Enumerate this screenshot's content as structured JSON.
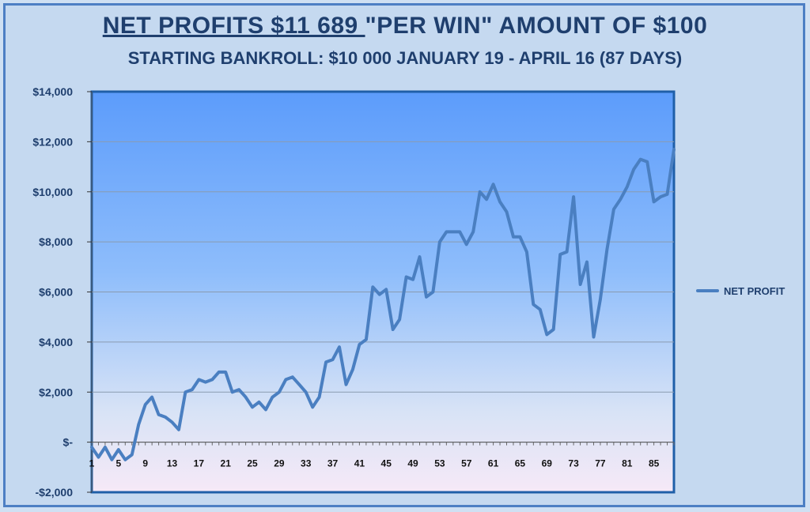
{
  "header": {
    "title_underlined": "NET PROFITS  $11 689 ",
    "title_rest": " \"PER WIN\" AMOUNT OF $100",
    "subtitle": "STARTING BANKROLL: $10 000     JANUARY 19 - APRIL 16 (87 DAYS)"
  },
  "chart_data": {
    "type": "line",
    "title": "NET PROFITS  $11 689  \"PER WIN\" AMOUNT OF $100",
    "subtitle": "STARTING BANKROLL: $10 000     JANUARY 19 - APRIL 16 (87 DAYS)",
    "xlabel": "",
    "ylabel": "",
    "ylim": [
      -2000,
      14000
    ],
    "yticks": [
      -2000,
      0,
      2000,
      4000,
      6000,
      8000,
      10000,
      12000,
      14000
    ],
    "ytick_labels": [
      "-$2,000",
      "$-",
      "$2,000",
      "$4,000",
      "$6,000",
      "$8,000",
      "$10,000",
      "$12,000",
      "$14,000"
    ],
    "xticks": [
      1,
      5,
      9,
      13,
      17,
      21,
      25,
      29,
      33,
      37,
      41,
      45,
      49,
      53,
      57,
      61,
      65,
      69,
      73,
      77,
      81,
      85
    ],
    "xlim": [
      1,
      88
    ],
    "grid": true,
    "legend_position": "right",
    "line_color": "#4a7fc1",
    "series": [
      {
        "name": "NET PROFIT",
        "x": [
          1,
          2,
          3,
          4,
          5,
          6,
          7,
          8,
          9,
          10,
          11,
          12,
          13,
          14,
          15,
          16,
          17,
          18,
          19,
          20,
          21,
          22,
          23,
          24,
          25,
          26,
          27,
          28,
          29,
          30,
          31,
          32,
          33,
          34,
          35,
          36,
          37,
          38,
          39,
          40,
          41,
          42,
          43,
          44,
          45,
          46,
          47,
          48,
          49,
          50,
          51,
          52,
          53,
          54,
          55,
          56,
          57,
          58,
          59,
          60,
          61,
          62,
          63,
          64,
          65,
          66,
          67,
          68,
          69,
          70,
          71,
          72,
          73,
          74,
          75,
          76,
          77,
          78,
          79,
          80,
          81,
          82,
          83,
          84,
          85,
          86,
          87,
          88
        ],
        "values": [
          -200,
          -600,
          -200,
          -700,
          -300,
          -700,
          -500,
          700,
          1500,
          1800,
          1100,
          1000,
          800,
          500,
          2000,
          2100,
          2500,
          2400,
          2500,
          2800,
          2800,
          2000,
          2100,
          1800,
          1400,
          1600,
          1300,
          1800,
          2000,
          2500,
          2600,
          2300,
          2000,
          1400,
          1800,
          3200,
          3300,
          3800,
          2300,
          2900,
          3900,
          4100,
          6200,
          5900,
          6100,
          4500,
          4900,
          6600,
          6500,
          7400,
          5800,
          6000,
          8000,
          8400,
          8400,
          8400,
          7900,
          8400,
          10000,
          9700,
          10300,
          9600,
          9200,
          8200,
          8200,
          7600,
          5500,
          5300,
          4300,
          4500,
          7500,
          7600,
          9800,
          6300,
          7200,
          4200,
          5700,
          7700,
          9300,
          9700,
          10200,
          10900,
          11300,
          11200,
          9600,
          9800,
          9900,
          11689
        ]
      }
    ]
  }
}
